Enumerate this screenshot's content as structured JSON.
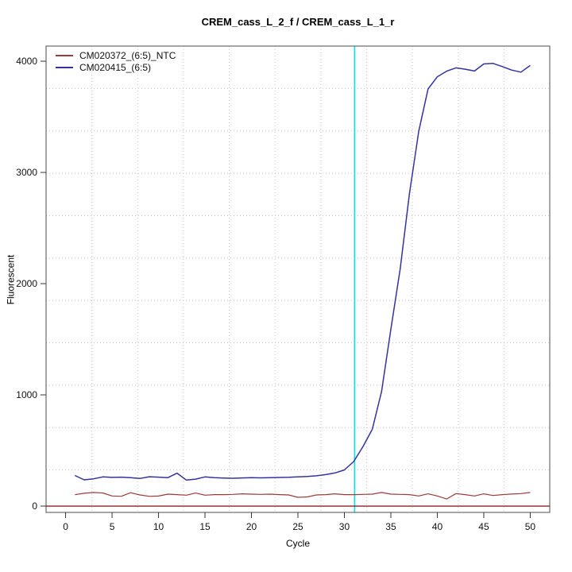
{
  "colors": {
    "background": "#ffffff",
    "box_border": "#4d4d4d",
    "tick": "#333333",
    "text": "#111111"
  },
  "chart_data": {
    "type": "line",
    "title": "CREM_cass_L_2_f / CREM_cass_L_1_r",
    "xlabel": "Cycle",
    "ylabel": "Fluorescent",
    "x_ticks": [
      0,
      5,
      10,
      15,
      20,
      25,
      30,
      35,
      40,
      45,
      50
    ],
    "y_ticks": [
      0,
      1000,
      2000,
      3000,
      4000
    ],
    "x_range": [
      -2.1,
      52.1
    ],
    "y_range": [
      -57,
      4136
    ],
    "grid": {
      "on": true,
      "nx": 11,
      "ny": 11,
      "color": "#c9c9c9",
      "style": "dotted"
    },
    "ct_line": {
      "x": 31.1,
      "color": "#00e6e6"
    },
    "baseline_line": {
      "y": 0,
      "color": "#8b2222"
    },
    "legend_position": "top-left",
    "cycles": [
      1,
      2,
      3,
      4,
      5,
      6,
      7,
      8,
      9,
      10,
      11,
      12,
      13,
      14,
      15,
      16,
      17,
      18,
      19,
      20,
      21,
      22,
      23,
      24,
      25,
      26,
      27,
      28,
      29,
      30,
      31,
      32,
      33,
      34,
      35,
      36,
      37,
      38,
      39,
      40,
      41,
      42,
      43,
      44,
      45,
      46,
      47,
      48,
      49,
      50
    ],
    "series": [
      {
        "name": "CM020372_(6:5)_NTC",
        "color": "#9b3b3b",
        "values": [
          102,
          115,
          122,
          118,
          91,
          88,
          120,
          100,
          88,
          90,
          107,
          103,
          98,
          117,
          98,
          103,
          103,
          105,
          110,
          107,
          105,
          107,
          103,
          100,
          79,
          82,
          100,
          103,
          110,
          103,
          103,
          105,
          107,
          122,
          107,
          105,
          103,
          91,
          110,
          91,
          64,
          112,
          103,
          91,
          110,
          95,
          103,
          108,
          112,
          122
        ]
      },
      {
        "name": "CM020415_(6:5)",
        "color": "#3333a0",
        "values": [
          275,
          236,
          245,
          262,
          258,
          260,
          256,
          248,
          264,
          260,
          255,
          296,
          234,
          242,
          262,
          256,
          252,
          250,
          253,
          256,
          254,
          255,
          257,
          259,
          262,
          266,
          272,
          283,
          298,
          325,
          400,
          535,
          690,
          1030,
          1590,
          2130,
          2810,
          3370,
          3750,
          3860,
          3910,
          3940,
          3928,
          3912,
          3975,
          3980,
          3952,
          3920,
          3902,
          3962
        ]
      }
    ]
  }
}
